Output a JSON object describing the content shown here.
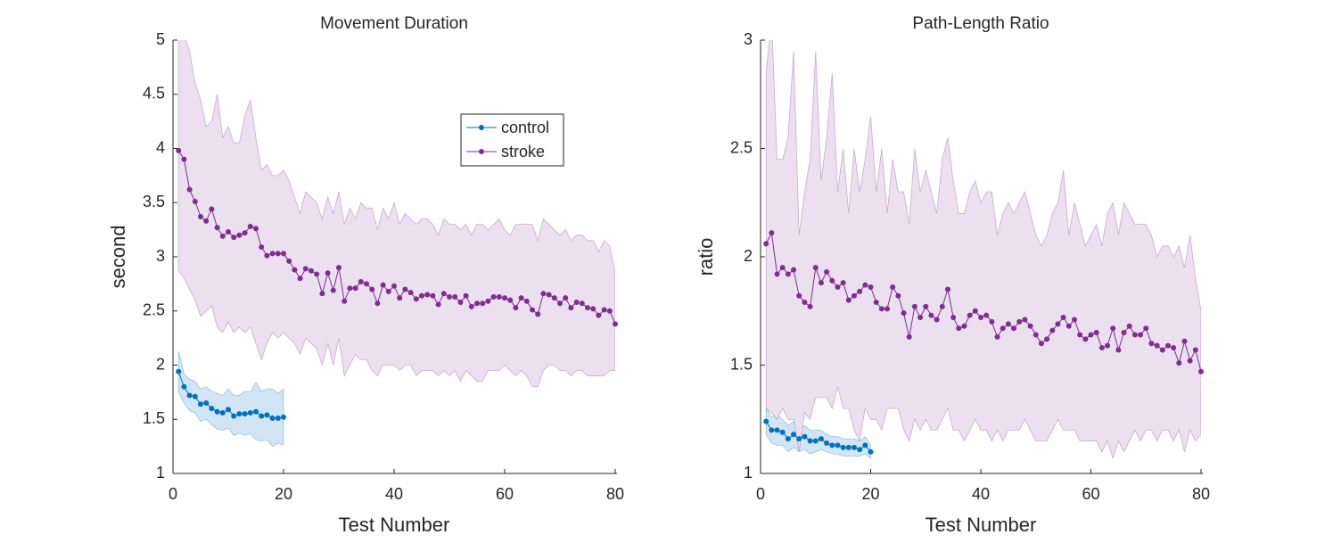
{
  "chart_data": [
    {
      "type": "line",
      "title": "Movement Duration",
      "xlabel": "Test Number",
      "ylabel": "second",
      "xlim": [
        0,
        80
      ],
      "xticks": [
        0,
        20,
        40,
        60,
        80
      ],
      "ylim": [
        1,
        5
      ],
      "yticks": [
        1,
        1.5,
        2,
        2.5,
        3,
        3.5,
        4,
        4.5,
        5
      ],
      "legend": "northeast",
      "series": [
        {
          "name": "control",
          "color": "#0072bd",
          "band_color": "#d2e5f4",
          "x": [
            1,
            2,
            3,
            4,
            5,
            6,
            7,
            8,
            9,
            10,
            11,
            12,
            13,
            14,
            15,
            16,
            17,
            18,
            19,
            20
          ],
          "values": [
            1.94,
            1.8,
            1.72,
            1.71,
            1.64,
            1.65,
            1.6,
            1.57,
            1.56,
            1.59,
            1.53,
            1.55,
            1.55,
            1.56,
            1.57,
            1.53,
            1.54,
            1.51,
            1.51,
            1.52
          ],
          "upper": [
            2.13,
            1.92,
            1.87,
            1.85,
            1.78,
            1.8,
            1.76,
            1.74,
            1.72,
            1.78,
            1.72,
            1.72,
            1.76,
            1.75,
            1.84,
            1.76,
            1.78,
            1.78,
            1.74,
            1.78
          ],
          "lower": [
            1.75,
            1.65,
            1.58,
            1.56,
            1.48,
            1.5,
            1.45,
            1.41,
            1.4,
            1.42,
            1.35,
            1.37,
            1.35,
            1.37,
            1.31,
            1.3,
            1.31,
            1.25,
            1.28,
            1.26
          ]
        },
        {
          "name": "stroke",
          "color": "#7e2f8e",
          "band_color": "#ebdff0",
          "x": [
            1,
            2,
            3,
            4,
            5,
            6,
            7,
            8,
            9,
            10,
            11,
            12,
            13,
            14,
            15,
            16,
            17,
            18,
            19,
            20,
            21,
            22,
            23,
            24,
            25,
            26,
            27,
            28,
            29,
            30,
            31,
            32,
            33,
            34,
            35,
            36,
            37,
            38,
            39,
            40,
            41,
            42,
            43,
            44,
            45,
            46,
            47,
            48,
            49,
            50,
            51,
            52,
            53,
            54,
            55,
            56,
            57,
            58,
            59,
            60,
            61,
            62,
            63,
            64,
            65,
            66,
            67,
            68,
            69,
            70,
            71,
            72,
            73,
            74,
            75,
            76,
            77,
            78,
            79,
            80
          ],
          "values": [
            3.98,
            3.9,
            3.62,
            3.51,
            3.37,
            3.33,
            3.44,
            3.27,
            3.19,
            3.23,
            3.18,
            3.2,
            3.22,
            3.28,
            3.26,
            3.09,
            3.01,
            3.03,
            3.03,
            3.03,
            2.96,
            2.88,
            2.8,
            2.89,
            2.87,
            2.84,
            2.66,
            2.85,
            2.69,
            2.9,
            2.59,
            2.71,
            2.71,
            2.77,
            2.75,
            2.7,
            2.57,
            2.74,
            2.68,
            2.73,
            2.62,
            2.7,
            2.67,
            2.61,
            2.64,
            2.65,
            2.64,
            2.56,
            2.66,
            2.63,
            2.63,
            2.58,
            2.64,
            2.54,
            2.57,
            2.57,
            2.59,
            2.63,
            2.63,
            2.62,
            2.6,
            2.53,
            2.62,
            2.59,
            2.51,
            2.47,
            2.66,
            2.65,
            2.62,
            2.57,
            2.62,
            2.53,
            2.58,
            2.57,
            2.53,
            2.52,
            2.46,
            2.51,
            2.5,
            2.38
          ],
          "upper": [
            5.2,
            5.05,
            4.9,
            4.6,
            4.45,
            4.2,
            4.25,
            4.5,
            4.1,
            4.2,
            4.05,
            4.05,
            4.3,
            4.45,
            4.1,
            3.8,
            3.85,
            3.75,
            3.75,
            3.8,
            3.7,
            3.55,
            3.4,
            3.6,
            3.55,
            3.5,
            3.35,
            3.55,
            3.4,
            3.6,
            3.3,
            3.45,
            3.35,
            3.5,
            3.45,
            3.45,
            3.25,
            3.45,
            3.35,
            3.5,
            3.3,
            3.4,
            3.35,
            3.3,
            3.35,
            3.35,
            3.3,
            3.2,
            3.35,
            3.3,
            3.3,
            3.25,
            3.3,
            3.2,
            3.3,
            3.3,
            3.25,
            3.3,
            3.35,
            3.25,
            3.2,
            3.3,
            3.3,
            3.3,
            3.3,
            3.15,
            3.35,
            3.3,
            3.25,
            3.2,
            3.25,
            3.15,
            3.2,
            3.2,
            3.15,
            3.15,
            3.05,
            3.15,
            3.1,
            2.85
          ],
          "lower": [
            2.87,
            2.8,
            2.7,
            2.6,
            2.45,
            2.5,
            2.55,
            2.35,
            2.3,
            2.4,
            2.3,
            2.35,
            2.3,
            2.35,
            2.2,
            2.05,
            2.2,
            2.3,
            2.25,
            2.3,
            2.25,
            2.2,
            2.1,
            2.25,
            2.2,
            2.15,
            2.0,
            2.2,
            2.0,
            2.25,
            1.9,
            2.0,
            2.1,
            2.05,
            2.05,
            1.95,
            1.9,
            2.0,
            2.0,
            2.0,
            1.95,
            2.0,
            2.0,
            1.9,
            1.95,
            1.95,
            1.95,
            1.9,
            1.95,
            1.9,
            1.95,
            1.85,
            1.95,
            1.9,
            1.85,
            1.85,
            1.95,
            1.95,
            1.95,
            2.0,
            1.95,
            1.9,
            1.95,
            1.9,
            1.8,
            1.8,
            1.95,
            2.0,
            2.0,
            1.95,
            1.95,
            1.9,
            1.95,
            1.95,
            1.9,
            1.9,
            1.9,
            1.9,
            1.95,
            1.95
          ]
        }
      ]
    },
    {
      "type": "line",
      "title": "Path-Length Ratio",
      "xlabel": "Test Number",
      "ylabel": "ratio",
      "xlim": [
        0,
        80
      ],
      "xticks": [
        0,
        20,
        40,
        60,
        80
      ],
      "ylim": [
        1,
        3
      ],
      "yticks": [
        1,
        1.5,
        2,
        2.5,
        3
      ],
      "series": [
        {
          "name": "control",
          "color": "#0072bd",
          "band_color": "#d2e5f4",
          "x": [
            1,
            2,
            3,
            4,
            5,
            6,
            7,
            8,
            9,
            10,
            11,
            12,
            13,
            14,
            15,
            16,
            17,
            18,
            19,
            20
          ],
          "values": [
            1.24,
            1.2,
            1.2,
            1.19,
            1.16,
            1.18,
            1.16,
            1.17,
            1.15,
            1.15,
            1.16,
            1.14,
            1.13,
            1.13,
            1.12,
            1.12,
            1.12,
            1.11,
            1.13,
            1.1
          ],
          "upper": [
            1.3,
            1.26,
            1.27,
            1.25,
            1.22,
            1.24,
            1.21,
            1.22,
            1.2,
            1.2,
            1.2,
            1.18,
            1.17,
            1.17,
            1.16,
            1.16,
            1.16,
            1.15,
            1.17,
            1.13
          ],
          "lower": [
            1.18,
            1.14,
            1.13,
            1.13,
            1.1,
            1.12,
            1.1,
            1.11,
            1.09,
            1.1,
            1.11,
            1.1,
            1.09,
            1.09,
            1.08,
            1.08,
            1.08,
            1.08,
            1.09,
            1.07
          ]
        },
        {
          "name": "stroke",
          "color": "#7e2f8e",
          "band_color": "#ebdff0",
          "x": [
            1,
            2,
            3,
            4,
            5,
            6,
            7,
            8,
            9,
            10,
            11,
            12,
            13,
            14,
            15,
            16,
            17,
            18,
            19,
            20,
            21,
            22,
            23,
            24,
            25,
            26,
            27,
            28,
            29,
            30,
            31,
            32,
            33,
            34,
            35,
            36,
            37,
            38,
            39,
            40,
            41,
            42,
            43,
            44,
            45,
            46,
            47,
            48,
            49,
            50,
            51,
            52,
            53,
            54,
            55,
            56,
            57,
            58,
            59,
            60,
            61,
            62,
            63,
            64,
            65,
            66,
            67,
            68,
            69,
            70,
            71,
            72,
            73,
            74,
            75,
            76,
            77,
            78,
            79,
            80
          ],
          "values": [
            2.06,
            2.11,
            1.92,
            1.95,
            1.92,
            1.94,
            1.82,
            1.79,
            1.77,
            1.95,
            1.88,
            1.93,
            1.89,
            1.86,
            1.88,
            1.8,
            1.82,
            1.84,
            1.87,
            1.86,
            1.79,
            1.76,
            1.76,
            1.86,
            1.82,
            1.74,
            1.63,
            1.77,
            1.72,
            1.77,
            1.73,
            1.71,
            1.77,
            1.85,
            1.72,
            1.67,
            1.68,
            1.73,
            1.75,
            1.72,
            1.73,
            1.7,
            1.63,
            1.67,
            1.69,
            1.67,
            1.7,
            1.71,
            1.68,
            1.64,
            1.6,
            1.62,
            1.66,
            1.69,
            1.72,
            1.68,
            1.71,
            1.64,
            1.62,
            1.64,
            1.65,
            1.58,
            1.59,
            1.67,
            1.57,
            1.65,
            1.68,
            1.64,
            1.64,
            1.67,
            1.6,
            1.59,
            1.57,
            1.59,
            1.58,
            1.51,
            1.61,
            1.52,
            1.57,
            1.47
          ],
          "upper": [
            2.85,
            3.1,
            2.45,
            2.45,
            2.55,
            2.95,
            2.1,
            2.3,
            2.45,
            2.95,
            2.35,
            2.55,
            2.85,
            2.3,
            2.5,
            2.2,
            2.5,
            2.3,
            2.45,
            2.65,
            2.3,
            2.5,
            2.2,
            2.45,
            2.3,
            2.3,
            2.15,
            2.5,
            2.3,
            2.4,
            2.3,
            2.2,
            2.45,
            2.55,
            2.35,
            2.2,
            2.2,
            2.3,
            2.35,
            2.25,
            2.3,
            2.3,
            2.1,
            2.2,
            2.25,
            2.2,
            2.25,
            2.3,
            2.2,
            2.1,
            2.05,
            2.1,
            2.2,
            2.25,
            2.4,
            2.1,
            2.25,
            2.15,
            2.05,
            2.1,
            2.15,
            2.05,
            2.2,
            2.25,
            2.1,
            2.25,
            2.2,
            2.15,
            2.15,
            2.15,
            2.1,
            2.0,
            2.05,
            2.05,
            2.0,
            2.05,
            1.95,
            2.1,
            1.9,
            1.75
          ],
          "lower": [
            1.3,
            1.28,
            1.25,
            1.3,
            1.25,
            1.25,
            1.1,
            1.28,
            1.25,
            1.35,
            1.35,
            1.35,
            1.3,
            1.4,
            1.3,
            1.3,
            1.2,
            1.15,
            1.3,
            1.25,
            1.25,
            1.2,
            1.3,
            1.3,
            1.3,
            1.2,
            1.15,
            1.25,
            1.2,
            1.25,
            1.2,
            1.2,
            1.25,
            1.3,
            1.2,
            1.2,
            1.15,
            1.2,
            1.25,
            1.2,
            1.2,
            1.15,
            1.2,
            1.15,
            1.2,
            1.2,
            1.2,
            1.25,
            1.2,
            1.15,
            1.15,
            1.15,
            1.2,
            1.25,
            1.2,
            1.2,
            1.2,
            1.15,
            1.15,
            1.15,
            1.15,
            1.1,
            1.15,
            1.07,
            1.15,
            1.1,
            1.15,
            1.2,
            1.15,
            1.2,
            1.2,
            1.15,
            1.2,
            1.2,
            1.15,
            1.2,
            1.1,
            1.2,
            1.15,
            1.18
          ]
        }
      ]
    }
  ]
}
